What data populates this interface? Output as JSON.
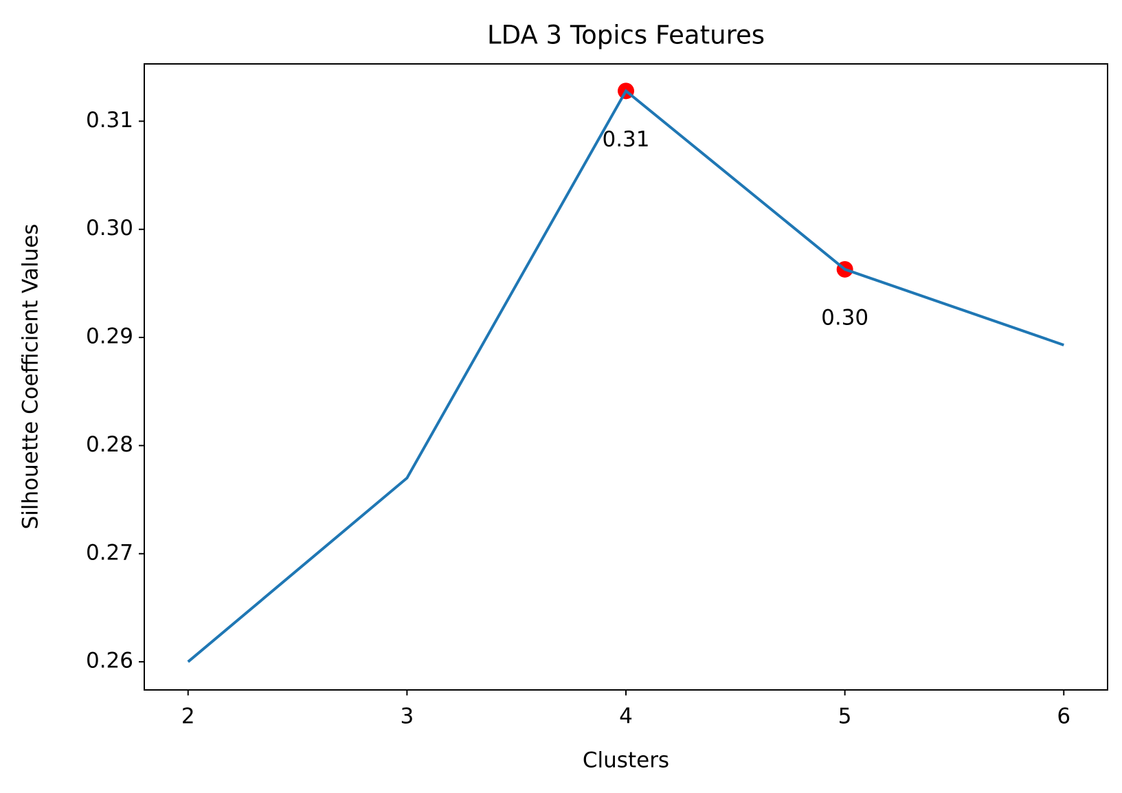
{
  "chart_data": {
    "type": "line",
    "title": "LDA 3 Topics Features",
    "xlabel": "Clusters",
    "ylabel": "Silhouette Coefficient Values",
    "x": [
      2,
      3,
      4,
      5,
      6
    ],
    "series": [
      {
        "color": "#1f77b4",
        "values": [
          0.26,
          0.277,
          0.3128,
          0.2963,
          0.2893
        ]
      }
    ],
    "highlights": {
      "color": "#ff0000",
      "x": [
        4,
        5
      ],
      "values": [
        0.3128,
        0.2963
      ],
      "value_labels": [
        "0.31",
        "0.30"
      ]
    },
    "xlim": [
      1.8,
      6.2
    ],
    "xticks": [
      2,
      3,
      4,
      5,
      6
    ],
    "ylim": [
      0.2574,
      0.3153
    ],
    "yticks": [
      0.26,
      0.27,
      0.28,
      0.29,
      {
        "value": 0.3,
        "label": "0.30"
      },
      0.31
    ]
  }
}
